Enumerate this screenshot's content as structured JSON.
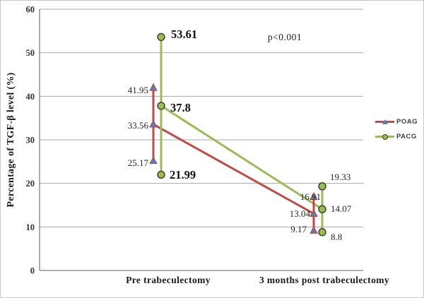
{
  "figure": {
    "background": "#ffffff",
    "border_color": "#c6c6c6"
  },
  "chart_data": {
    "type": "line",
    "title": "",
    "xlabel": "",
    "ylabel": "Percentage of TGF-β level (%)",
    "ylim": [
      0,
      60
    ],
    "yticks": [
      0,
      10,
      20,
      30,
      40,
      50,
      60
    ],
    "grid": true,
    "grid_color": "#a9a9a9",
    "axis_color": "#808080",
    "categories": [
      "Pre trabeculectomy",
      "3 months post trabeculectomy"
    ],
    "annotation": "p<0.001",
    "legend_position": "right-outside",
    "series": [
      {
        "name": "POAG",
        "color": "#be4b48",
        "marker": "triangle",
        "marker_fill": "#4f81bd",
        "marker_stroke": "#be4b48",
        "means": [
          33.56,
          13.04
        ],
        "upper": [
          41.95,
          16.91
        ],
        "lower": [
          25.17,
          9.17
        ]
      },
      {
        "name": "PACG",
        "color": "#9bbb59",
        "marker": "circle",
        "marker_fill": "#9bbb59",
        "marker_stroke": "#3b3b22",
        "means": [
          37.8,
          14.07
        ],
        "upper": [
          53.61,
          19.33
        ],
        "lower": [
          21.99,
          8.8
        ]
      }
    ]
  }
}
